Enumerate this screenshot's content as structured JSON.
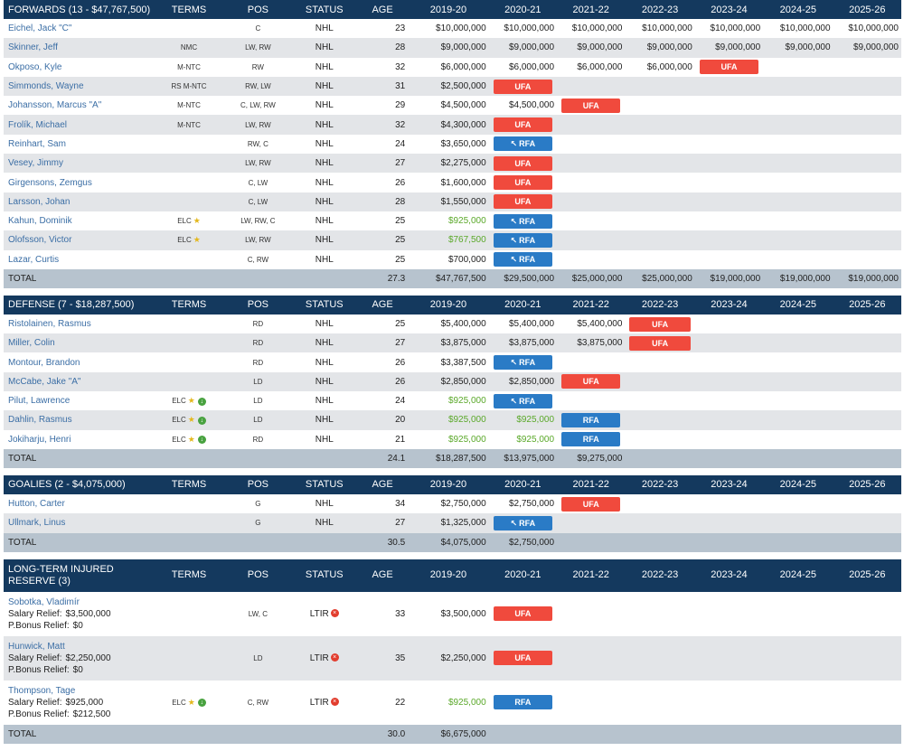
{
  "colors": {
    "header": "#14395e",
    "ufa": "#f04a3d",
    "rfa": "#2a7bc6",
    "elc_green": "#5aa829",
    "link": "#3b6ea5"
  },
  "icons": {
    "trophy": "trophy-icon",
    "download": "arrow-down-circle-icon",
    "ltir": "close-circle-icon",
    "rfa_arrow": "arrow-back-icon"
  },
  "columns": [
    "TERMS",
    "POS",
    "STATUS",
    "AGE",
    "2019-20",
    "2020-21",
    "2021-22",
    "2022-23",
    "2023-24",
    "2024-25",
    "2025-26"
  ],
  "forwards": {
    "title": "FORWARDS (13 - $47,767,500)",
    "players": [
      {
        "name": "Eichel, Jack \"C\"",
        "terms": "",
        "pos": "C",
        "status": "NHL",
        "age": "23",
        "y1": "$10,000,000",
        "y2": "$10,000,000",
        "y3": "$10,000,000",
        "y4": "$10,000,000",
        "y5": "$10,000,000",
        "y6": "$10,000,000",
        "y7": "$10,000,000"
      },
      {
        "name": "Skinner, Jeff",
        "terms": "NMC",
        "pos": "LW, RW",
        "status": "NHL",
        "age": "28",
        "y1": "$9,000,000",
        "y2": "$9,000,000",
        "y3": "$9,000,000",
        "y4": "$9,000,000",
        "y5": "$9,000,000",
        "y6": "$9,000,000",
        "y7": "$9,000,000"
      },
      {
        "name": "Okposo, Kyle",
        "terms": "M-NTC",
        "pos": "RW",
        "status": "NHL",
        "age": "32",
        "y1": "$6,000,000",
        "y2": "$6,000,000",
        "y3": "$6,000,000",
        "y4": "$6,000,000",
        "y5": "UFA"
      },
      {
        "name": "Simmonds, Wayne",
        "terms": "RS M-NTC",
        "pos": "RW, LW",
        "status": "NHL",
        "age": "31",
        "y1": "$2,500,000",
        "y2": "UFA"
      },
      {
        "name": "Johansson, Marcus \"A\"",
        "terms": "M-NTC",
        "pos": "C, LW, RW",
        "status": "NHL",
        "age": "29",
        "y1": "$4,500,000",
        "y2": "$4,500,000",
        "y3": "UFA"
      },
      {
        "name": "Frolík, Michael",
        "terms": "M-NTC",
        "pos": "LW, RW",
        "status": "NHL",
        "age": "32",
        "y1": "$4,300,000",
        "y2": "UFA"
      },
      {
        "name": "Reinhart, Sam",
        "terms": "",
        "pos": "RW, C",
        "status": "NHL",
        "age": "24",
        "y1": "$3,650,000",
        "y2": "RFA-ARROW"
      },
      {
        "name": "Vesey, Jimmy",
        "terms": "",
        "pos": "LW, RW",
        "status": "NHL",
        "age": "27",
        "y1": "$2,275,000",
        "y2": "UFA"
      },
      {
        "name": "Girgensons, Zemgus",
        "terms": "",
        "pos": "C, LW",
        "status": "NHL",
        "age": "26",
        "y1": "$1,600,000",
        "y2": "UFA"
      },
      {
        "name": "Larsson, Johan",
        "terms": "",
        "pos": "C, LW",
        "status": "NHL",
        "age": "28",
        "y1": "$1,550,000",
        "y2": "UFA"
      },
      {
        "name": "Kahun, Dominik",
        "terms": "ELC",
        "trophy": true,
        "pos": "LW, RW, C",
        "status": "NHL",
        "age": "25",
        "y1": "$925,000",
        "y1green": true,
        "y2": "RFA-ARROW"
      },
      {
        "name": "Olofsson, Victor",
        "terms": "ELC",
        "trophy": true,
        "pos": "LW, RW",
        "status": "NHL",
        "age": "25",
        "y1": "$767,500",
        "y1green": true,
        "y2": "RFA-ARROW"
      },
      {
        "name": "Lazar, Curtis",
        "terms": "",
        "pos": "C, RW",
        "status": "NHL",
        "age": "25",
        "y1": "$700,000",
        "y2": "RFA-ARROW"
      }
    ],
    "total": {
      "label": "TOTAL",
      "age": "27.3",
      "y1": "$47,767,500",
      "y2": "$29,500,000",
      "y3": "$25,000,000",
      "y4": "$25,000,000",
      "y5": "$19,000,000",
      "y6": "$19,000,000",
      "y7": "$19,000,000"
    }
  },
  "defense": {
    "title": "DEFENSE (7 - $18,287,500)",
    "players": [
      {
        "name": "Ristolainen, Rasmus",
        "terms": "",
        "pos": "RD",
        "status": "NHL",
        "age": "25",
        "y1": "$5,400,000",
        "y2": "$5,400,000",
        "y3": "$5,400,000",
        "y4": "UFA"
      },
      {
        "name": "Miller, Colin",
        "terms": "",
        "pos": "RD",
        "status": "NHL",
        "age": "27",
        "y1": "$3,875,000",
        "y2": "$3,875,000",
        "y3": "$3,875,000",
        "y4": "UFA"
      },
      {
        "name": "Montour, Brandon",
        "terms": "",
        "pos": "RD",
        "status": "NHL",
        "age": "26",
        "y1": "$3,387,500",
        "y2": "RFA-ARROW"
      },
      {
        "name": "McCabe, Jake \"A\"",
        "terms": "",
        "pos": "LD",
        "status": "NHL",
        "age": "26",
        "y1": "$2,850,000",
        "y2": "$2,850,000",
        "y3": "UFA"
      },
      {
        "name": "Pilut, Lawrence",
        "terms": "ELC",
        "trophy": true,
        "dl": true,
        "pos": "LD",
        "status": "NHL",
        "age": "24",
        "y1": "$925,000",
        "y1green": true,
        "y2": "RFA-ARROW"
      },
      {
        "name": "Dahlin, Rasmus",
        "terms": "ELC",
        "trophy": true,
        "dl": true,
        "pos": "LD",
        "status": "NHL",
        "age": "20",
        "y1": "$925,000",
        "y1green": true,
        "y2": "$925,000",
        "y2green": true,
        "y3": "RFA"
      },
      {
        "name": "Jokiharju, Henri",
        "terms": "ELC",
        "trophy": true,
        "dl": true,
        "pos": "RD",
        "status": "NHL",
        "age": "21",
        "y1": "$925,000",
        "y1green": true,
        "y2": "$925,000",
        "y2green": true,
        "y3": "RFA"
      }
    ],
    "total": {
      "label": "TOTAL",
      "age": "24.1",
      "y1": "$18,287,500",
      "y2": "$13,975,000",
      "y3": "$9,275,000"
    }
  },
  "goalies": {
    "title": "GOALIES (2 - $4,075,000)",
    "players": [
      {
        "name": "Hutton, Carter",
        "terms": "",
        "pos": "G",
        "status": "NHL",
        "age": "34",
        "y1": "$2,750,000",
        "y2": "$2,750,000",
        "y3": "UFA"
      },
      {
        "name": "Ullmark, Linus",
        "terms": "",
        "pos": "G",
        "status": "NHL",
        "age": "27",
        "y1": "$1,325,000",
        "y2": "RFA-ARROW"
      }
    ],
    "total": {
      "label": "TOTAL",
      "age": "30.5",
      "y1": "$4,075,000",
      "y2": "$2,750,000"
    }
  },
  "ltir": {
    "title": "LONG-TERM INJURED RESERVE (3)",
    "relief_label": "Salary Relief:",
    "bonus_label": "P.Bonus Relief:",
    "players": [
      {
        "name": "Sobotka, Vladimír",
        "relief": "$3,500,000",
        "bonus": "$0",
        "terms": "",
        "pos": "LW, C",
        "status": "LTIR",
        "age": "33",
        "y1": "$3,500,000",
        "y2": "UFA"
      },
      {
        "name": "Hunwick, Matt",
        "relief": "$2,250,000",
        "bonus": "$0",
        "terms": "",
        "pos": "LD",
        "status": "LTIR",
        "age": "35",
        "y1": "$2,250,000",
        "y2": "UFA"
      },
      {
        "name": "Thompson, Tage",
        "relief": "$925,000",
        "bonus": "$212,500",
        "terms": "ELC",
        "trophy": true,
        "dl": true,
        "pos": "C, RW",
        "status": "LTIR",
        "age": "22",
        "y1": "$925,000",
        "y1green": true,
        "y2": "RFA"
      }
    ],
    "total": {
      "label": "TOTAL",
      "age": "30.0",
      "y1": "$6,675,000"
    }
  },
  "badges": {
    "ufa": "UFA",
    "rfa": "RFA"
  }
}
